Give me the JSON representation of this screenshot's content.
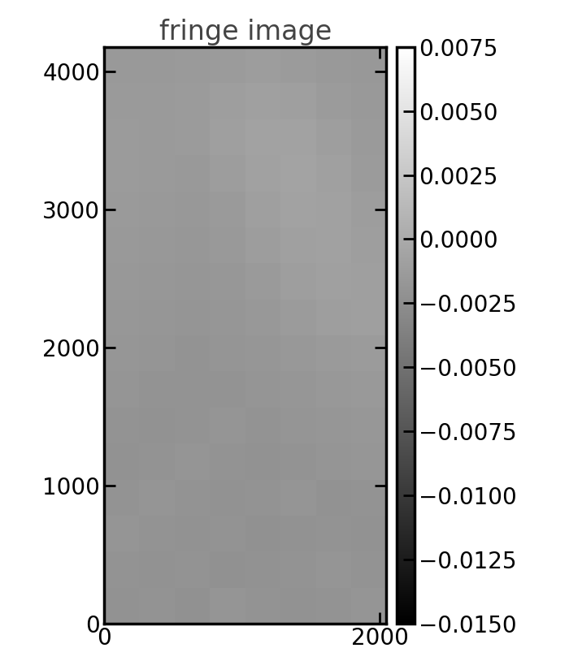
{
  "chart_data": {
    "type": "heatmap",
    "title": "fringe image",
    "xlim": [
      0,
      2048
    ],
    "ylim": [
      0,
      4176
    ],
    "xticks": [
      0,
      2000
    ],
    "yticks": [
      0,
      1000,
      2000,
      3000,
      4000
    ],
    "color": "gray",
    "cells": [
      [
        -0.0021,
        -0.002,
        -0.0022,
        -0.0019,
        -0.002,
        -0.0021,
        -0.002,
        -0.0019
      ],
      [
        -0.002,
        -0.0021,
        -0.002,
        -0.0022,
        -0.0021,
        -0.002,
        -0.0019,
        -0.002
      ],
      [
        -0.0019,
        -0.002,
        -0.0021,
        -0.002,
        -0.0022,
        -0.0021,
        -0.002,
        -0.0021
      ],
      [
        -0.002,
        -0.0019,
        -0.002,
        -0.0021,
        -0.002,
        -0.0019,
        -0.0021,
        -0.002
      ],
      [
        -0.0021,
        -0.002,
        -0.0019,
        -0.002,
        -0.0021,
        -0.002,
        -0.0019,
        -0.0018
      ],
      [
        -0.002,
        -0.0021,
        -0.002,
        -0.0019,
        -0.002,
        -0.0019,
        -0.0018,
        -0.0017
      ],
      [
        -0.0019,
        -0.002,
        -0.002,
        -0.002,
        -0.0019,
        -0.0018,
        -0.0016,
        -0.0015
      ],
      [
        -0.0018,
        -0.0019,
        -0.002,
        -0.0019,
        -0.0018,
        -0.0016,
        -0.0014,
        -0.0013
      ],
      [
        -0.0017,
        -0.0018,
        -0.0019,
        -0.0018,
        -0.0016,
        -0.0013,
        -0.0011,
        -0.001
      ],
      [
        -0.0016,
        -0.0017,
        -0.0018,
        -0.0017,
        -0.0014,
        -0.0011,
        -0.0009,
        -0.001
      ],
      [
        -0.0015,
        -0.0016,
        -0.0017,
        -0.0015,
        -0.0012,
        -0.0009,
        -0.0008,
        -0.0011
      ],
      [
        -0.0014,
        -0.0015,
        -0.0016,
        -0.0014,
        -0.001,
        -0.0007,
        -0.0008,
        -0.0012
      ],
      [
        -0.0013,
        -0.0014,
        -0.0015,
        -0.0012,
        -0.0008,
        -0.0006,
        -0.0009,
        -0.0013
      ],
      [
        -0.0013,
        -0.0014,
        -0.0013,
        -0.001,
        -0.0007,
        -0.0007,
        -0.0011,
        -0.0014
      ],
      [
        -0.0014,
        -0.0014,
        -0.0013,
        -0.0011,
        -0.0009,
        -0.001,
        -0.0013,
        -0.0015
      ],
      [
        -0.0015,
        -0.0015,
        -0.0014,
        -0.0013,
        -0.0012,
        -0.0013,
        -0.0015,
        -0.0016
      ]
    ],
    "color_range": [
      -0.015,
      0.0075
    ],
    "color_ticks": [
      {
        "value": 0.0075,
        "label": "0.0075"
      },
      {
        "value": 0.005,
        "label": "0.0050"
      },
      {
        "value": 0.0025,
        "label": "0.0025"
      },
      {
        "value": 0.0,
        "label": "0.0000"
      },
      {
        "value": -0.0025,
        "label": "−0.0025"
      },
      {
        "value": -0.005,
        "label": "−0.0050"
      },
      {
        "value": -0.0075,
        "label": "−0.0075"
      },
      {
        "value": -0.01,
        "label": "−0.0100"
      },
      {
        "value": -0.0125,
        "label": "−0.0125"
      },
      {
        "value": -0.015,
        "label": "−0.0150"
      }
    ]
  }
}
